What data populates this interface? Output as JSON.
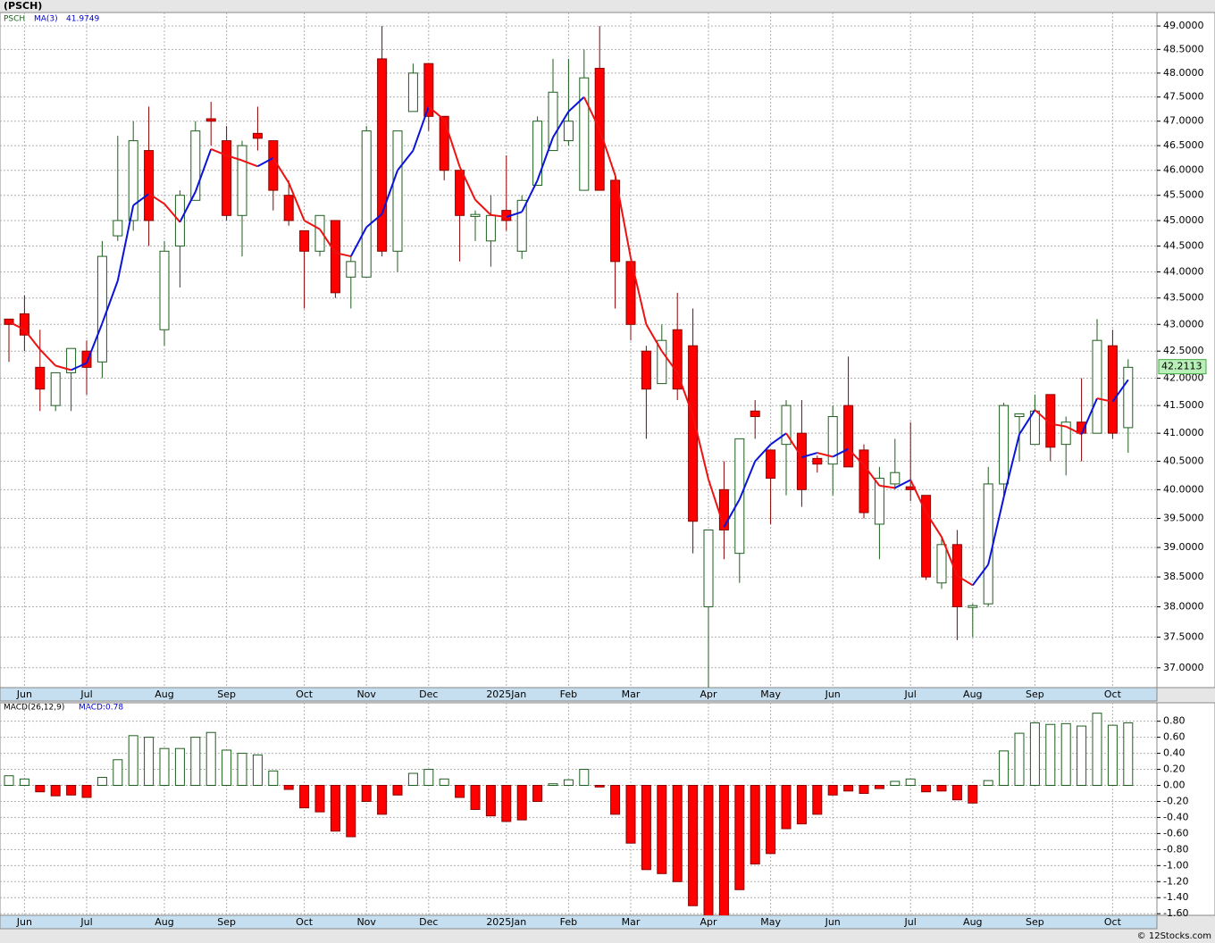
{
  "chart_data": [
    {
      "type": "candlestick",
      "title": "(PSCH)",
      "name": "PSCH",
      "categories": [
        null,
        "Jun",
        null,
        null,
        null,
        "Jul",
        null,
        null,
        null,
        null,
        "Aug",
        null,
        null,
        null,
        "Sep",
        null,
        null,
        null,
        null,
        "Oct",
        null,
        null,
        null,
        "Nov",
        null,
        null,
        null,
        "Dec",
        null,
        null,
        null,
        null,
        "2025Jan",
        null,
        null,
        null,
        "Feb",
        null,
        null,
        null,
        "Mar",
        null,
        null,
        null,
        null,
        "Apr",
        null,
        null,
        null,
        "May",
        null,
        null,
        null,
        "Jun",
        null,
        null,
        null,
        null,
        "Jul",
        null,
        null,
        null,
        "Aug",
        null,
        null,
        null,
        "Sep",
        null,
        null,
        null,
        null,
        "Oct",
        null
      ],
      "open": [
        43.1,
        43.2,
        42.2,
        41.5,
        42.1,
        42.5,
        42.3,
        44.7,
        45.0,
        46.4,
        42.9,
        44.5,
        45.4,
        47.05,
        46.6,
        45.1,
        46.75,
        46.6,
        45.5,
        44.8,
        44.4,
        45.0,
        43.9,
        43.9,
        48.3,
        44.4,
        47.2,
        48.2,
        47.1,
        46.0,
        45.08,
        44.6,
        45.2,
        44.4,
        45.7,
        46.4,
        46.6,
        45.6,
        48.1,
        45.8,
        44.2,
        42.5,
        41.9,
        42.9,
        42.6,
        38.0,
        40.0,
        38.9,
        41.4,
        40.7,
        40.8,
        41.0,
        40.55,
        40.45,
        41.5,
        40.7,
        39.4,
        40.1,
        40.05,
        39.9,
        38.4,
        39.05,
        37.99,
        38.05,
        40.1,
        41.3,
        40.8,
        41.7,
        40.8,
        41.2,
        41.0,
        42.6,
        41.1
      ],
      "high": [
        43.1,
        43.55,
        42.9,
        42.1,
        42.55,
        42.7,
        44.6,
        46.7,
        47.0,
        47.3,
        44.6,
        45.6,
        47.0,
        47.4,
        46.9,
        46.6,
        47.3,
        46.6,
        45.8,
        44.8,
        45.1,
        45.0,
        44.3,
        46.9,
        49.0,
        46.8,
        48.2,
        48.2,
        47.1,
        46.0,
        45.2,
        45.5,
        46.3,
        45.5,
        47.1,
        48.3,
        48.3,
        48.5,
        49.0,
        45.9,
        44.2,
        42.6,
        43.0,
        43.6,
        43.3,
        39.3,
        40.5,
        40.9,
        41.6,
        40.7,
        41.6,
        41.6,
        40.6,
        41.5,
        42.4,
        40.8,
        40.4,
        40.9,
        41.2,
        39.9,
        39.2,
        39.3,
        38.05,
        40.4,
        41.55,
        41.35,
        41.7,
        41.7,
        41.3,
        42.0,
        43.1,
        42.9,
        42.35
      ],
      "low": [
        42.3,
        42.5,
        41.4,
        41.4,
        41.4,
        41.7,
        42.0,
        44.6,
        44.8,
        44.5,
        42.6,
        43.7,
        45.4,
        46.5,
        45.0,
        44.3,
        46.4,
        45.2,
        44.9,
        43.3,
        44.3,
        43.5,
        43.3,
        43.9,
        44.3,
        44.0,
        47.2,
        46.8,
        45.8,
        44.2,
        44.6,
        44.1,
        44.8,
        44.25,
        45.7,
        46.4,
        46.5,
        45.6,
        45.6,
        43.3,
        42.7,
        40.9,
        41.9,
        41.6,
        38.9,
        36.5,
        38.8,
        38.4,
        40.9,
        39.4,
        39.9,
        39.7,
        40.3,
        39.9,
        40.4,
        39.5,
        38.8,
        40.0,
        39.8,
        38.45,
        38.3,
        37.45,
        37.5,
        38.0,
        39.9,
        40.5,
        40.8,
        40.5,
        40.25,
        40.5,
        41.0,
        40.9,
        40.65
      ],
      "close": [
        43.0,
        42.8,
        41.8,
        42.1,
        42.55,
        42.2,
        44.3,
        45.0,
        46.6,
        45.0,
        44.4,
        45.5,
        46.8,
        47.0,
        45.1,
        46.5,
        46.65,
        45.6,
        45.0,
        44.4,
        45.1,
        43.6,
        44.2,
        46.8,
        44.4,
        46.8,
        48.0,
        47.1,
        46.0,
        45.1,
        45.12,
        45.1,
        45.0,
        45.4,
        47.0,
        47.6,
        47.0,
        47.9,
        45.6,
        44.2,
        43.0,
        41.8,
        42.7,
        41.8,
        39.45,
        39.3,
        39.3,
        40.9,
        41.3,
        40.2,
        41.5,
        40.0,
        40.45,
        41.3,
        40.4,
        39.6,
        40.2,
        40.3,
        40.0,
        38.5,
        39.05,
        38.0,
        38.02,
        40.1,
        41.5,
        41.35,
        41.4,
        40.75,
        41.2,
        41.0,
        42.7,
        41.0,
        42.2
      ],
      "up_color": "#ffffff",
      "up_edge": "#1e5e1e",
      "down_color": "#ff0000",
      "down_edge": "#8b0000",
      "overlay": {
        "name": "MA(3)",
        "value": 41.9749,
        "color": "#0000cc",
        "up_color": "#0a14d8",
        "down_color": "#ee1111",
        "values": [
          43.05,
          42.9,
          42.53,
          42.23,
          42.15,
          42.28,
          43.02,
          43.83,
          45.3,
          45.53,
          45.33,
          44.97,
          45.57,
          46.43,
          46.3,
          46.2,
          46.08,
          46.25,
          45.75,
          45.0,
          44.83,
          44.37,
          44.3,
          44.87,
          45.13,
          46.0,
          46.4,
          47.3,
          47.03,
          46.07,
          45.41,
          45.11,
          45.07,
          45.17,
          45.8,
          46.67,
          47.2,
          47.5,
          46.83,
          45.9,
          44.27,
          43.0,
          42.5,
          42.1,
          41.32,
          40.18,
          39.35,
          39.83,
          40.5,
          40.8,
          41.0,
          40.57,
          40.65,
          40.58,
          40.72,
          40.43,
          40.07,
          40.03,
          40.17,
          39.6,
          39.18,
          38.52,
          38.36,
          38.71,
          39.87,
          40.98,
          41.42,
          41.17,
          41.12,
          40.98,
          41.63,
          41.57,
          41.97
        ]
      },
      "last_price": 42.2113,
      "last_price_color": "#b8f0b8",
      "ylim": [
        36.68,
        49.29
      ],
      "log_scale": true,
      "grid": true,
      "yticks": [
        {
          "value": 37,
          "label": "37.0000"
        },
        {
          "value": 37.5,
          "label": "37.5000"
        },
        {
          "value": 38,
          "label": "38.0000"
        },
        {
          "value": 38.5,
          "label": "38.5000"
        },
        {
          "value": 39,
          "label": "39.0000"
        },
        {
          "value": 39.5,
          "label": "39.5000"
        },
        {
          "value": 40,
          "label": "40.0000"
        },
        {
          "value": 40.5,
          "label": "40.5000"
        },
        {
          "value": 41,
          "label": "41.0000"
        },
        {
          "value": 41.5,
          "label": "41.5000"
        },
        {
          "value": 42,
          "label": "42.0000"
        },
        {
          "value": 42.5,
          "label": "42.5000"
        },
        {
          "value": 43,
          "label": "43.0000"
        },
        {
          "value": 43.5,
          "label": "43.5000"
        },
        {
          "value": 44,
          "label": "44.0000"
        },
        {
          "value": 44.5,
          "label": "44.5000"
        },
        {
          "value": 45,
          "label": "45.0000"
        },
        {
          "value": 45.5,
          "label": "45.5000"
        },
        {
          "value": 46,
          "label": "46.0000"
        },
        {
          "value": 46.5,
          "label": "46.5000"
        },
        {
          "value": 47,
          "label": "47.0000"
        },
        {
          "value": 47.5,
          "label": "47.5000"
        },
        {
          "value": 48,
          "label": "48.0000"
        },
        {
          "value": 48.5,
          "label": "48.5000"
        },
        {
          "value": 49,
          "label": "49.0000"
        }
      ]
    },
    {
      "type": "bar",
      "name": "MACD(26,12,9)",
      "value_label": "MACD:0.78",
      "categories": [
        null,
        "Jun",
        null,
        null,
        null,
        "Jul",
        null,
        null,
        null,
        null,
        "Aug",
        null,
        null,
        null,
        "Sep",
        null,
        null,
        null,
        null,
        "Oct",
        null,
        null,
        null,
        "Nov",
        null,
        null,
        null,
        "Dec",
        null,
        null,
        null,
        null,
        "2025Jan",
        null,
        null,
        null,
        "Feb",
        null,
        null,
        null,
        "Mar",
        null,
        null,
        null,
        null,
        "Apr",
        null,
        null,
        null,
        "May",
        null,
        null,
        null,
        "Jun",
        null,
        null,
        null,
        null,
        "Jul",
        null,
        null,
        null,
        "Aug",
        null,
        null,
        null,
        "Sep",
        null,
        null,
        null,
        null,
        "Oct",
        null
      ],
      "values": [
        0.12,
        0.08,
        -0.08,
        -0.13,
        -0.12,
        -0.15,
        0.1,
        0.32,
        0.62,
        0.6,
        0.46,
        0.46,
        0.6,
        0.66,
        0.44,
        0.4,
        0.38,
        0.18,
        -0.05,
        -0.28,
        -0.33,
        -0.57,
        -0.64,
        -0.2,
        -0.36,
        -0.12,
        0.15,
        0.2,
        0.08,
        -0.15,
        -0.3,
        -0.38,
        -0.45,
        -0.43,
        -0.2,
        0.02,
        0.07,
        0.2,
        -0.02,
        -0.36,
        -0.72,
        -1.05,
        -1.1,
        -1.2,
        -1.5,
        -1.75,
        -1.7,
        -1.3,
        -0.98,
        -0.85,
        -0.54,
        -0.48,
        -0.36,
        -0.12,
        -0.07,
        -0.1,
        -0.04,
        0.05,
        0.08,
        -0.08,
        -0.07,
        -0.18,
        -0.22,
        0.06,
        0.43,
        0.65,
        0.78,
        0.76,
        0.77,
        0.74,
        0.9,
        0.75,
        0.78
      ],
      "pos_color": "#ffffff",
      "pos_edge": "#1e5e1e",
      "neg_color": "#ff0000",
      "neg_edge": "#8b0000",
      "ylim": [
        -1.62,
        1.03
      ],
      "grid": true,
      "yticks": [
        {
          "value": -1.6,
          "label": "-1.60"
        },
        {
          "value": -1.4,
          "label": "-1.40"
        },
        {
          "value": -1.2,
          "label": "-1.20"
        },
        {
          "value": -1,
          "label": "-1.00"
        },
        {
          "value": -0.8,
          "label": "-0.80"
        },
        {
          "value": -0.6,
          "label": "-0.60"
        },
        {
          "value": -0.4,
          "label": "-0.40"
        },
        {
          "value": -0.2,
          "label": "-0.20"
        },
        {
          "value": 0,
          "label": "0.00"
        },
        {
          "value": 0.2,
          "label": "0.20"
        },
        {
          "value": 0.4,
          "label": "0.40"
        },
        {
          "value": 0.6,
          "label": "0.60"
        },
        {
          "value": 0.8,
          "label": "0.80"
        }
      ]
    }
  ],
  "footer": "© 12Stocks.com"
}
